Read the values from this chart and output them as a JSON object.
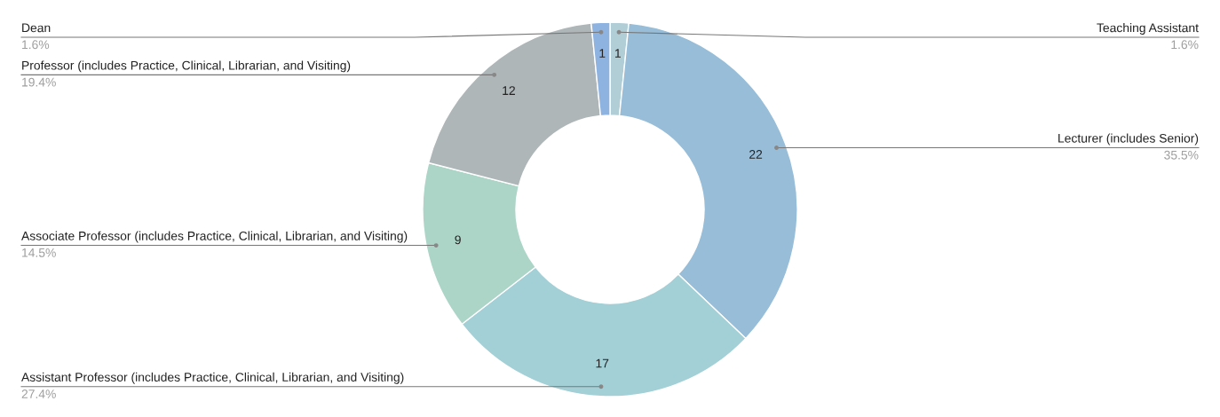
{
  "chart_data": {
    "type": "donut",
    "categories": [
      "Teaching Assistant",
      "Lecturer (includes Senior)",
      "Assistant Professor (includes Practice, Clinical, Librarian, and Visiting)",
      "Associate Professor (includes Practice, Clinical, Librarian, and Visiting)",
      "Professor (includes Practice, Clinical, Librarian, and Visiting)",
      "Dean"
    ],
    "values": [
      1.6,
      35.5,
      27.4,
      14.5,
      19.4,
      1.6
    ],
    "colors": [
      "#b1cdd6",
      "#97bdd8",
      "#a3cfd6",
      "#acd5c8",
      "#afb6b8",
      "#8fb3e0"
    ],
    "value_labels": [
      "1.6%",
      "35.5%",
      "27.4%",
      "14.5%",
      "19.4%",
      "1.6%"
    ],
    "annotations": [
      "1",
      "22",
      "17",
      "9",
      "12",
      "1"
    ]
  }
}
